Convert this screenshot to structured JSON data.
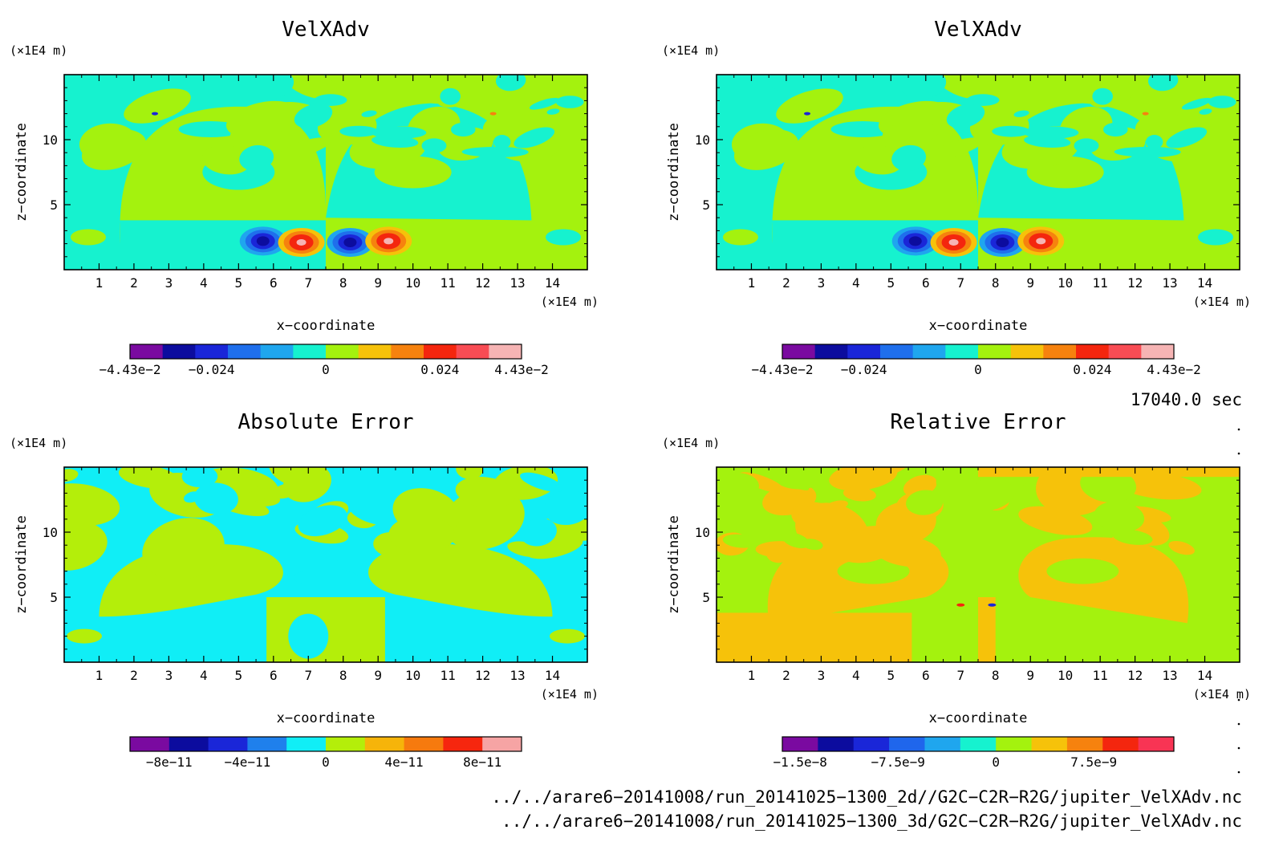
{
  "panels": [
    {
      "title": "VelXAdv",
      "ylabel": "z−coordinate",
      "xlabel": "x−coordinate",
      "yunit": "(×1E4 m)",
      "xunit": "(×1E4 m)",
      "field": "velx",
      "colorbar": {
        "colors": [
          "#7a0aa0",
          "#0c0c9e",
          "#1a26d8",
          "#1f6fec",
          "#1fa6ee",
          "#16f2cf",
          "#a4f20e",
          "#f6c20a",
          "#f6820e",
          "#f4260e",
          "#f84c54",
          "#f6b4b4"
        ],
        "labels": [
          "−4.43e−2",
          "−0.024",
          "0",
          "0.024",
          "4.43e−2"
        ],
        "label_positions": [
          0,
          2.5,
          6,
          9.5,
          12
        ]
      }
    },
    {
      "title": "VelXAdv",
      "ylabel": "z−coordinate",
      "xlabel": "x−coordinate",
      "yunit": "(×1E4 m)",
      "xunit": "(×1E4 m)",
      "field": "velx",
      "colorbar": {
        "colors": [
          "#7a0aa0",
          "#0c0c9e",
          "#1a26d8",
          "#1f6fec",
          "#1fa6ee",
          "#16f2cf",
          "#a4f20e",
          "#f6c20a",
          "#f6820e",
          "#f4260e",
          "#f84c54",
          "#f6b4b4"
        ],
        "labels": [
          "−4.43e−2",
          "−0.024",
          "0",
          "0.024",
          "4.43e−2"
        ],
        "label_positions": [
          0,
          2.5,
          6,
          9.5,
          12
        ]
      }
    },
    {
      "title": "Absolute Error",
      "ylabel": "z−coordinate",
      "xlabel": "x−coordinate",
      "yunit": "(×1E4 m)",
      "xunit": "(×1E4 m)",
      "field": "abs",
      "colorbar": {
        "colors": [
          "#7a0aa0",
          "#0c0c9e",
          "#1a26d8",
          "#1f80ec",
          "#10eef6",
          "#b4ee0a",
          "#f6b40a",
          "#f67a0e",
          "#f6260e",
          "#f6a4a4"
        ],
        "labels": [
          "−8e−11",
          "−4e−11",
          "0",
          "4e−11",
          "8e−11"
        ],
        "label_positions": [
          1,
          3,
          5,
          7,
          9
        ]
      }
    },
    {
      "title": "Relative Error",
      "ylabel": "z−coordinate",
      "xlabel": "x−coordinate",
      "yunit": "(×1E4 m)",
      "xunit": "(×1E4 m)",
      "field": "rel",
      "colorbar": {
        "colors": [
          "#7a0aa0",
          "#0c0c9e",
          "#1a26d8",
          "#1f66ec",
          "#1fa6ee",
          "#16f2cf",
          "#a4f20e",
          "#f6c20a",
          "#f6820e",
          "#f4260e",
          "#f83454"
        ],
        "labels": [
          "−1.5e−8",
          "−7.5e−9",
          "0",
          "7.5e−9"
        ],
        "label_positions": [
          0.5,
          3.25,
          6,
          8.75
        ]
      }
    }
  ],
  "time_label": "17040.0 sec",
  "files": [
    "../../arare6−20141008/run_20141025−1300_2d//G2C−C2R−R2G/jupiter_VelXAdv.nc",
    "../../arare6−20141008/run_20141025−1300_3d/G2C−C2R−R2G/jupiter_VelXAdv.nc"
  ],
  "chart_data": [
    {
      "type": "heatmap",
      "title": "VelXAdv",
      "xlabel": "x−coordinate",
      "ylabel": "z−coordinate",
      "xunit": "(×1E4 m)",
      "yunit": "(×1E4 m)",
      "xlim": [
        0,
        15
      ],
      "ylim": [
        0,
        15
      ],
      "xticks": [
        1,
        2,
        3,
        4,
        5,
        6,
        7,
        8,
        9,
        10,
        11,
        12,
        13,
        14
      ],
      "yticks": [
        5,
        10
      ],
      "colorbar_range": [
        -0.0443,
        0.0443
      ],
      "colorbar_ticks": [
        "−4.43e−2",
        "−0.024",
        "0",
        "0.024",
        "4.43e−2"
      ],
      "features": [
        {
          "x": 5.7,
          "z": 2.2,
          "sign": "negative"
        },
        {
          "x": 6.8,
          "z": 2.1,
          "sign": "positive"
        },
        {
          "x": 8.2,
          "z": 2.1,
          "sign": "negative"
        },
        {
          "x": 9.3,
          "z": 2.2,
          "sign": "positive"
        }
      ]
    },
    {
      "type": "heatmap",
      "title": "VelXAdv",
      "xlabel": "x−coordinate",
      "ylabel": "z−coordinate",
      "xunit": "(×1E4 m)",
      "yunit": "(×1E4 m)",
      "xlim": [
        0,
        15
      ],
      "ylim": [
        0,
        15
      ],
      "xticks": [
        1,
        2,
        3,
        4,
        5,
        6,
        7,
        8,
        9,
        10,
        11,
        12,
        13,
        14
      ],
      "yticks": [
        5,
        10
      ],
      "colorbar_range": [
        -0.0443,
        0.0443
      ],
      "colorbar_ticks": [
        "−4.43e−2",
        "−0.024",
        "0",
        "0.024",
        "4.43e−2"
      ],
      "features": [
        {
          "x": 5.7,
          "z": 2.2,
          "sign": "negative"
        },
        {
          "x": 6.8,
          "z": 2.1,
          "sign": "positive"
        },
        {
          "x": 8.2,
          "z": 2.1,
          "sign": "negative"
        },
        {
          "x": 9.3,
          "z": 2.2,
          "sign": "positive"
        }
      ]
    },
    {
      "type": "heatmap",
      "title": "Absolute Error",
      "xlabel": "x−coordinate",
      "ylabel": "z−coordinate",
      "xunit": "(×1E4 m)",
      "yunit": "(×1E4 m)",
      "xlim": [
        0,
        15
      ],
      "ylim": [
        0,
        15
      ],
      "xticks": [
        1,
        2,
        3,
        4,
        5,
        6,
        7,
        8,
        9,
        10,
        11,
        12,
        13,
        14
      ],
      "yticks": [
        5,
        10
      ],
      "colorbar_ticks": [
        "−8e−11",
        "−4e−11",
        "0",
        "4e−11",
        "8e−11"
      ]
    },
    {
      "type": "heatmap",
      "title": "Relative Error",
      "xlabel": "x−coordinate",
      "ylabel": "z−coordinate",
      "xunit": "(×1E4 m)",
      "yunit": "(×1E4 m)",
      "xlim": [
        0,
        15
      ],
      "ylim": [
        0,
        15
      ],
      "xticks": [
        1,
        2,
        3,
        4,
        5,
        6,
        7,
        8,
        9,
        10,
        11,
        12,
        13,
        14
      ],
      "yticks": [
        5,
        10
      ],
      "colorbar_ticks": [
        "−1.5e−8",
        "−7.5e−9",
        "0",
        "7.5e−9"
      ]
    }
  ]
}
